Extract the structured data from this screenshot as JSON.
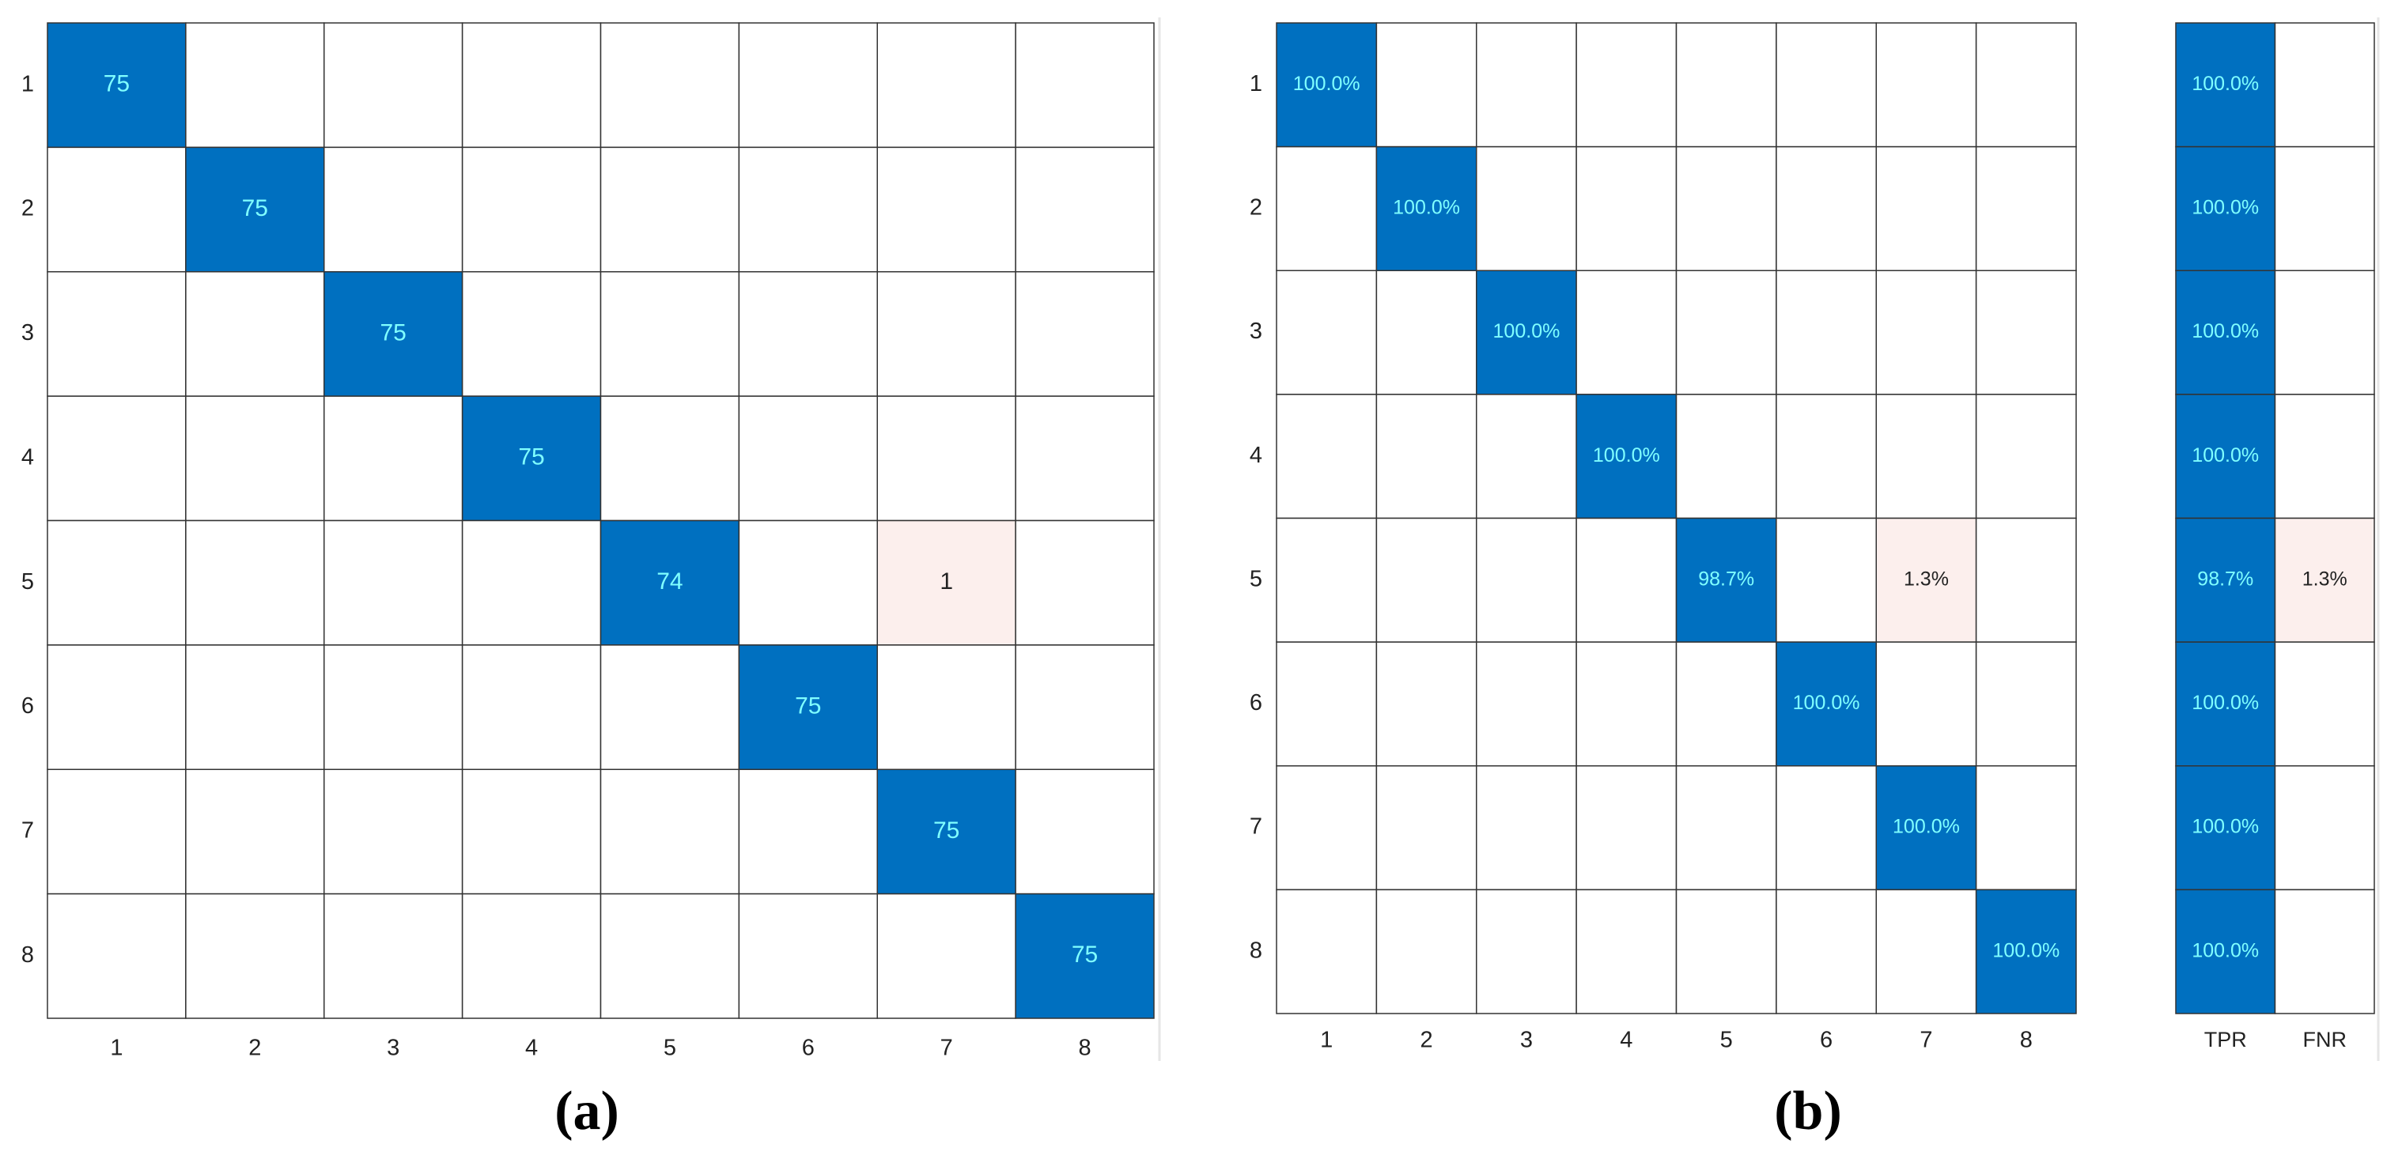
{
  "chart_data": [
    {
      "type": "heatmap",
      "label": "(a)",
      "x_categories": [
        "1",
        "2",
        "3",
        "4",
        "5",
        "6",
        "7",
        "8"
      ],
      "y_categories": [
        "1",
        "2",
        "3",
        "4",
        "5",
        "6",
        "7",
        "8"
      ],
      "values": [
        [
          75,
          null,
          null,
          null,
          null,
          null,
          null,
          null
        ],
        [
          null,
          75,
          null,
          null,
          null,
          null,
          null,
          null
        ],
        [
          null,
          null,
          75,
          null,
          null,
          null,
          null,
          null
        ],
        [
          null,
          null,
          null,
          75,
          null,
          null,
          null,
          null
        ],
        [
          null,
          null,
          null,
          null,
          74,
          null,
          1,
          null
        ],
        [
          null,
          null,
          null,
          null,
          null,
          75,
          null,
          null
        ],
        [
          null,
          null,
          null,
          null,
          null,
          null,
          75,
          null
        ],
        [
          null,
          null,
          null,
          null,
          null,
          null,
          null,
          75
        ]
      ],
      "colors": {
        "high": "#0070c0",
        "low": "#fcefed",
        "high_text": "#80ffff",
        "low_text": "#222222"
      }
    },
    {
      "type": "heatmap",
      "label": "(b)",
      "x_categories": [
        "1",
        "2",
        "3",
        "4",
        "5",
        "6",
        "7",
        "8"
      ],
      "y_categories": [
        "1",
        "2",
        "3",
        "4",
        "5",
        "6",
        "7",
        "8"
      ],
      "values": [
        [
          100.0,
          null,
          null,
          null,
          null,
          null,
          null,
          null
        ],
        [
          null,
          100.0,
          null,
          null,
          null,
          null,
          null,
          null
        ],
        [
          null,
          null,
          100.0,
          null,
          null,
          null,
          null,
          null
        ],
        [
          null,
          null,
          null,
          100.0,
          null,
          null,
          null,
          null
        ],
        [
          null,
          null,
          null,
          null,
          98.7,
          null,
          1.3,
          null
        ],
        [
          null,
          null,
          null,
          null,
          null,
          100.0,
          null,
          null
        ],
        [
          null,
          null,
          null,
          null,
          null,
          null,
          100.0,
          null
        ],
        [
          null,
          null,
          null,
          null,
          null,
          null,
          null,
          100.0
        ]
      ],
      "value_labels": [
        [
          "100.0%",
          null,
          null,
          null,
          null,
          null,
          null,
          null
        ],
        [
          null,
          "100.0%",
          null,
          null,
          null,
          null,
          null,
          null
        ],
        [
          null,
          null,
          "100.0%",
          null,
          null,
          null,
          null,
          null
        ],
        [
          null,
          null,
          null,
          "100.0%",
          null,
          null,
          null,
          null
        ],
        [
          null,
          null,
          null,
          null,
          "98.7%",
          null,
          "1.3%",
          null
        ],
        [
          null,
          null,
          null,
          null,
          null,
          "100.0%",
          null,
          null
        ],
        [
          null,
          null,
          null,
          null,
          null,
          null,
          "100.0%",
          null
        ],
        [
          null,
          null,
          null,
          null,
          null,
          null,
          null,
          "100.0%"
        ]
      ],
      "colors": {
        "high": "#0070c0",
        "low": "#fcefed",
        "high_text": "#80ffff",
        "low_text": "#222222"
      }
    },
    {
      "type": "heatmap",
      "x_categories": [
        "TPR",
        "FNR"
      ],
      "values": [
        [
          100.0,
          null
        ],
        [
          100.0,
          null
        ],
        [
          100.0,
          null
        ],
        [
          100.0,
          null
        ],
        [
          98.7,
          1.3
        ],
        [
          100.0,
          null
        ],
        [
          100.0,
          null
        ],
        [
          100.0,
          null
        ]
      ],
      "value_labels": [
        [
          "100.0%",
          null
        ],
        [
          "100.0%",
          null
        ],
        [
          "100.0%",
          null
        ],
        [
          "100.0%",
          null
        ],
        [
          "98.7%",
          "1.3%"
        ],
        [
          "100.0%",
          null
        ],
        [
          "100.0%",
          null
        ],
        [
          "100.0%",
          null
        ]
      ],
      "colors": {
        "high": "#0070c0",
        "low": "#fcefed",
        "high_text": "#80ffff",
        "low_text": "#222222"
      }
    }
  ]
}
